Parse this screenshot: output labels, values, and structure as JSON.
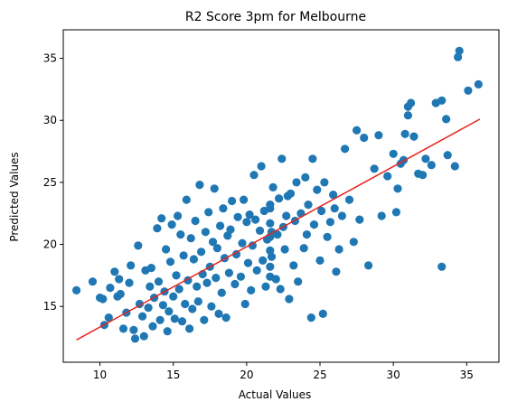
{
  "chart_data": {
    "type": "scatter",
    "title": "R2 Score 3pm for Melbourne",
    "xlabel": "Actual Values",
    "ylabel": "Predicted Values",
    "xlim": [
      7.5,
      37.2
    ],
    "ylim": [
      10.5,
      37.3
    ],
    "xticks": [
      10,
      15,
      20,
      25,
      30,
      35
    ],
    "yticks": [
      15,
      20,
      25,
      30,
      35
    ],
    "grid": false,
    "colors": {
      "points": "#1f77b4",
      "fit_line": "#e8251f",
      "axes": "#000000"
    },
    "points": [
      [
        8.4,
        16.3
      ],
      [
        9.5,
        17.0
      ],
      [
        10.0,
        15.7
      ],
      [
        10.2,
        15.6
      ],
      [
        10.3,
        13.5
      ],
      [
        10.6,
        14.1
      ],
      [
        10.7,
        16.5
      ],
      [
        11.0,
        17.8
      ],
      [
        11.2,
        15.8
      ],
      [
        11.3,
        17.2
      ],
      [
        11.4,
        16.0
      ],
      [
        11.6,
        13.2
      ],
      [
        11.8,
        14.5
      ],
      [
        12.0,
        16.9
      ],
      [
        12.1,
        18.3
      ],
      [
        12.3,
        13.1
      ],
      [
        12.4,
        12.4
      ],
      [
        12.6,
        19.9
      ],
      [
        12.7,
        15.2
      ],
      [
        12.9,
        14.2
      ],
      [
        13.0,
        12.6
      ],
      [
        13.1,
        17.9
      ],
      [
        13.3,
        14.9
      ],
      [
        13.4,
        16.6
      ],
      [
        13.5,
        18.1
      ],
      [
        13.6,
        13.4
      ],
      [
        13.7,
        15.7
      ],
      [
        13.9,
        21.3
      ],
      [
        14.0,
        17.0
      ],
      [
        14.1,
        13.9
      ],
      [
        14.2,
        22.1
      ],
      [
        14.3,
        15.1
      ],
      [
        14.4,
        16.2
      ],
      [
        14.5,
        19.6
      ],
      [
        14.6,
        13.0
      ],
      [
        14.7,
        14.6
      ],
      [
        14.8,
        18.6
      ],
      [
        14.9,
        21.6
      ],
      [
        15.0,
        15.8
      ],
      [
        15.1,
        14.0
      ],
      [
        15.2,
        17.5
      ],
      [
        15.3,
        22.3
      ],
      [
        15.4,
        16.4
      ],
      [
        15.5,
        20.8
      ],
      [
        15.6,
        13.8
      ],
      [
        15.7,
        19.1
      ],
      [
        15.8,
        15.2
      ],
      [
        15.9,
        23.6
      ],
      [
        16.0,
        17.1
      ],
      [
        16.1,
        13.2
      ],
      [
        16.2,
        20.5
      ],
      [
        16.3,
        14.8
      ],
      [
        16.4,
        18.8
      ],
      [
        16.5,
        21.9
      ],
      [
        16.6,
        16.6
      ],
      [
        16.7,
        15.4
      ],
      [
        16.8,
        24.8
      ],
      [
        16.9,
        19.4
      ],
      [
        17.0,
        17.6
      ],
      [
        17.1,
        13.9
      ],
      [
        17.2,
        21.0
      ],
      [
        17.3,
        16.9
      ],
      [
        17.4,
        22.6
      ],
      [
        17.5,
        18.2
      ],
      [
        17.6,
        15.0
      ],
      [
        17.7,
        20.2
      ],
      [
        17.8,
        24.5
      ],
      [
        17.9,
        17.3
      ],
      [
        18.0,
        19.7
      ],
      [
        18.1,
        14.4
      ],
      [
        18.2,
        21.5
      ],
      [
        18.3,
        16.1
      ],
      [
        18.4,
        22.9
      ],
      [
        18.5,
        18.9
      ],
      [
        18.6,
        14.1
      ],
      [
        18.7,
        20.7
      ],
      [
        18.8,
        17.7
      ],
      [
        18.9,
        21.2
      ],
      [
        19.0,
        23.5
      ],
      [
        19.2,
        16.8
      ],
      [
        19.3,
        19.2
      ],
      [
        19.4,
        22.2
      ],
      [
        19.6,
        17.4
      ],
      [
        19.7,
        20.1
      ],
      [
        19.8,
        23.6
      ],
      [
        19.9,
        15.2
      ],
      [
        20.0,
        21.8
      ],
      [
        20.1,
        18.5
      ],
      [
        20.2,
        22.4
      ],
      [
        20.3,
        16.3
      ],
      [
        20.4,
        19.9
      ],
      [
        20.5,
        25.6
      ],
      [
        20.6,
        22.0
      ],
      [
        20.7,
        17.9
      ],
      [
        20.9,
        21.1
      ],
      [
        21.0,
        26.3
      ],
      [
        21.1,
        18.7
      ],
      [
        21.2,
        22.7
      ],
      [
        21.3,
        16.6
      ],
      [
        21.4,
        20.4
      ],
      [
        21.6,
        21.7
      ],
      [
        21.6,
        22.9
      ],
      [
        21.6,
        20.6
      ],
      [
        21.6,
        19.5
      ],
      [
        21.6,
        18.2
      ],
      [
        21.6,
        17.4
      ],
      [
        21.6,
        23.2
      ],
      [
        21.7,
        21.0
      ],
      [
        21.7,
        19.0
      ],
      [
        21.8,
        24.6
      ],
      [
        22.0,
        17.2
      ],
      [
        22.1,
        20.8
      ],
      [
        22.2,
        23.7
      ],
      [
        22.3,
        16.4
      ],
      [
        22.4,
        26.9
      ],
      [
        22.5,
        21.4
      ],
      [
        22.6,
        19.6
      ],
      [
        22.7,
        22.3
      ],
      [
        22.8,
        23.9
      ],
      [
        22.9,
        15.6
      ],
      [
        23.0,
        24.1
      ],
      [
        23.2,
        18.3
      ],
      [
        23.3,
        21.9
      ],
      [
        23.4,
        25.0
      ],
      [
        23.5,
        17.0
      ],
      [
        23.7,
        22.5
      ],
      [
        23.9,
        19.7
      ],
      [
        24.0,
        25.4
      ],
      [
        24.1,
        20.8
      ],
      [
        24.2,
        23.2
      ],
      [
        24.4,
        14.1
      ],
      [
        24.5,
        26.9
      ],
      [
        24.6,
        21.6
      ],
      [
        24.8,
        24.4
      ],
      [
        25.0,
        18.7
      ],
      [
        25.1,
        22.7
      ],
      [
        25.2,
        14.4
      ],
      [
        25.3,
        25.0
      ],
      [
        25.5,
        20.6
      ],
      [
        25.7,
        21.8
      ],
      [
        25.9,
        24.0
      ],
      [
        26.0,
        22.9
      ],
      [
        26.1,
        17.8
      ],
      [
        26.3,
        19.6
      ],
      [
        26.5,
        22.3
      ],
      [
        26.7,
        27.7
      ],
      [
        27.0,
        23.6
      ],
      [
        27.3,
        20.2
      ],
      [
        27.5,
        29.2
      ],
      [
        27.7,
        22.0
      ],
      [
        28.0,
        28.6
      ],
      [
        28.3,
        18.3
      ],
      [
        28.7,
        26.1
      ],
      [
        29.0,
        28.8
      ],
      [
        29.2,
        22.3
      ],
      [
        29.6,
        25.5
      ],
      [
        30.0,
        27.3
      ],
      [
        30.2,
        22.6
      ],
      [
        30.3,
        24.5
      ],
      [
        30.5,
        26.5
      ],
      [
        30.8,
        28.9
      ],
      [
        31.0,
        31.1
      ],
      [
        31.2,
        31.4
      ],
      [
        31.4,
        28.7
      ],
      [
        31.7,
        25.7
      ],
      [
        32.0,
        25.6
      ],
      [
        32.2,
        26.9
      ],
      [
        32.6,
        26.4
      ],
      [
        32.9,
        31.4
      ],
      [
        33.3,
        31.6
      ],
      [
        33.3,
        18.2
      ],
      [
        33.6,
        30.1
      ],
      [
        33.7,
        27.2
      ],
      [
        34.2,
        26.3
      ],
      [
        34.4,
        35.1
      ],
      [
        34.5,
        35.6
      ],
      [
        35.1,
        32.4
      ],
      [
        35.8,
        32.9
      ],
      [
        31.0,
        30.4
      ],
      [
        30.7,
        26.8
      ]
    ],
    "fit_line": [
      [
        8.4,
        12.3
      ],
      [
        35.9,
        30.1
      ]
    ]
  }
}
